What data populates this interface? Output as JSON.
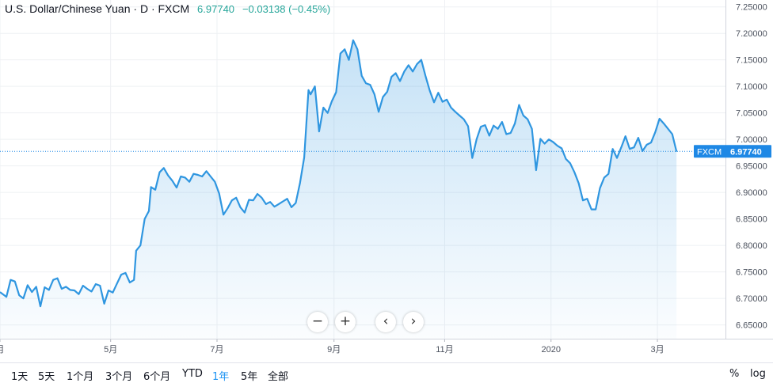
{
  "header": {
    "title": "U.S. Dollar/Chinese Yuan · D · FXCM",
    "price": "6.97740",
    "change": "−0.03138 (−0.45%)"
  },
  "price_label": {
    "symbol": "FXCM",
    "value": "6.97740"
  },
  "colors": {
    "line": "#2f96e0",
    "fill": "#2f96e0",
    "price_label_bg": "#1e88e5",
    "grid": "#eef0f3"
  },
  "controls": [
    {
      "name": "zoom-out-button",
      "label": "−"
    },
    {
      "name": "zoom-in-button",
      "label": "+"
    },
    {
      "name": "scroll-left-button",
      "label": "‹"
    },
    {
      "name": "scroll-right-button",
      "label": "›"
    }
  ],
  "ranges": [
    {
      "label": "1天",
      "active": false
    },
    {
      "label": "5天",
      "active": false
    },
    {
      "label": "1个月",
      "active": false
    },
    {
      "label": "3个月",
      "active": false
    },
    {
      "label": "6个月",
      "active": false
    },
    {
      "label": "YTD",
      "active": false
    },
    {
      "label": "1年",
      "active": true
    },
    {
      "label": "5年",
      "active": false
    },
    {
      "label": "全部",
      "active": false
    }
  ],
  "tools": {
    "percent": "%",
    "log": "log"
  },
  "chart_data": {
    "type": "area",
    "y_tick_labels": [
      "7.25000",
      "7.20000",
      "7.15000",
      "7.10000",
      "7.05000",
      "7.00000",
      "6.95000",
      "6.90000",
      "6.85000",
      "6.80000",
      "6.75000",
      "6.70000",
      "6.65000"
    ],
    "y_ticks": [
      7.25,
      7.2,
      7.15,
      7.1,
      7.05,
      7.0,
      6.95,
      6.9,
      6.85,
      6.8,
      6.75,
      6.7,
      6.65
    ],
    "ylim": [
      6.624,
      7.263
    ],
    "x_ticks": [
      {
        "label": "月",
        "day": 0
      },
      {
        "label": "5月",
        "day": 52
      },
      {
        "label": "7月",
        "day": 102
      },
      {
        "label": "9月",
        "day": 157
      },
      {
        "label": "11月",
        "day": 209
      },
      {
        "label": "2020",
        "day": 259
      },
      {
        "label": "3月",
        "day": 309
      }
    ],
    "xlim": [
      0,
      341
    ],
    "last_value": 6.9774,
    "series": [
      {
        "values": [
          [
            0,
            6.712
          ],
          [
            3,
            6.703
          ],
          [
            5,
            6.735
          ],
          [
            7,
            6.732
          ],
          [
            9,
            6.706
          ],
          [
            11,
            6.7
          ],
          [
            13,
            6.725
          ],
          [
            15,
            6.712
          ],
          [
            17,
            6.722
          ],
          [
            19,
            6.685
          ],
          [
            21,
            6.721
          ],
          [
            23,
            6.716
          ],
          [
            25,
            6.735
          ],
          [
            27,
            6.738
          ],
          [
            29,
            6.718
          ],
          [
            31,
            6.722
          ],
          [
            33,
            6.716
          ],
          [
            35,
            6.715
          ],
          [
            37,
            6.708
          ],
          [
            39,
            6.724
          ],
          [
            41,
            6.718
          ],
          [
            43,
            6.713
          ],
          [
            45,
            6.727
          ],
          [
            47,
            6.724
          ],
          [
            49,
            6.69
          ],
          [
            51,
            6.715
          ],
          [
            53,
            6.711
          ],
          [
            55,
            6.728
          ],
          [
            57,
            6.745
          ],
          [
            59,
            6.748
          ],
          [
            61,
            6.73
          ],
          [
            63,
            6.735
          ],
          [
            64,
            6.79
          ],
          [
            66,
            6.8
          ],
          [
            68,
            6.85
          ],
          [
            70,
            6.865
          ],
          [
            71,
            6.91
          ],
          [
            73,
            6.905
          ],
          [
            75,
            6.938
          ],
          [
            77,
            6.946
          ],
          [
            79,
            6.932
          ],
          [
            81,
            6.922
          ],
          [
            83,
            6.909
          ],
          [
            85,
            6.93
          ],
          [
            87,
            6.928
          ],
          [
            89,
            6.92
          ],
          [
            91,
            6.935
          ],
          [
            93,
            6.933
          ],
          [
            95,
            6.93
          ],
          [
            97,
            6.94
          ],
          [
            99,
            6.93
          ],
          [
            101,
            6.92
          ],
          [
            103,
            6.898
          ],
          [
            105,
            6.858
          ],
          [
            107,
            6.87
          ],
          [
            109,
            6.885
          ],
          [
            111,
            6.89
          ],
          [
            113,
            6.872
          ],
          [
            115,
            6.862
          ],
          [
            117,
            6.886
          ],
          [
            119,
            6.885
          ],
          [
            121,
            6.897
          ],
          [
            123,
            6.89
          ],
          [
            125,
            6.878
          ],
          [
            127,
            6.882
          ],
          [
            129,
            6.873
          ],
          [
            131,
            6.878
          ],
          [
            133,
            6.883
          ],
          [
            135,
            6.888
          ],
          [
            137,
            6.872
          ],
          [
            139,
            6.88
          ],
          [
            141,
            6.918
          ],
          [
            143,
            6.966
          ],
          [
            145,
            7.093
          ],
          [
            146,
            7.085
          ],
          [
            148,
            7.1
          ],
          [
            150,
            7.015
          ],
          [
            152,
            7.06
          ],
          [
            154,
            7.05
          ],
          [
            156,
            7.072
          ],
          [
            158,
            7.089
          ],
          [
            160,
            7.162
          ],
          [
            162,
            7.17
          ],
          [
            164,
            7.15
          ],
          [
            166,
            7.187
          ],
          [
            168,
            7.17
          ],
          [
            170,
            7.12
          ],
          [
            172,
            7.106
          ],
          [
            174,
            7.103
          ],
          [
            176,
            7.085
          ],
          [
            178,
            7.052
          ],
          [
            180,
            7.08
          ],
          [
            182,
            7.09
          ],
          [
            184,
            7.118
          ],
          [
            186,
            7.125
          ],
          [
            188,
            7.11
          ],
          [
            190,
            7.128
          ],
          [
            192,
            7.14
          ],
          [
            194,
            7.128
          ],
          [
            196,
            7.142
          ],
          [
            198,
            7.15
          ],
          [
            200,
            7.12
          ],
          [
            202,
            7.092
          ],
          [
            204,
            7.07
          ],
          [
            206,
            7.088
          ],
          [
            208,
            7.071
          ],
          [
            210,
            7.075
          ],
          [
            212,
            7.06
          ],
          [
            214,
            7.052
          ],
          [
            216,
            7.045
          ],
          [
            218,
            7.038
          ],
          [
            220,
            7.025
          ],
          [
            222,
            6.965
          ],
          [
            224,
            7.0
          ],
          [
            226,
            7.024
          ],
          [
            228,
            7.027
          ],
          [
            230,
            7.007
          ],
          [
            232,
            7.026
          ],
          [
            234,
            7.02
          ],
          [
            236,
            7.033
          ],
          [
            238,
            7.01
          ],
          [
            240,
            7.012
          ],
          [
            242,
            7.03
          ],
          [
            244,
            7.065
          ],
          [
            246,
            7.045
          ],
          [
            248,
            7.038
          ],
          [
            250,
            7.02
          ],
          [
            252,
            6.942
          ],
          [
            254,
            7.001
          ],
          [
            256,
            6.992
          ],
          [
            258,
            7.0
          ],
          [
            260,
            6.995
          ],
          [
            262,
            6.988
          ],
          [
            264,
            6.983
          ],
          [
            266,
            6.963
          ],
          [
            268,
            6.955
          ],
          [
            270,
            6.938
          ],
          [
            272,
            6.917
          ],
          [
            274,
            6.885
          ],
          [
            276,
            6.888
          ],
          [
            278,
            6.868
          ],
          [
            280,
            6.868
          ],
          [
            282,
            6.908
          ],
          [
            284,
            6.928
          ],
          [
            286,
            6.935
          ],
          [
            288,
            6.982
          ],
          [
            290,
            6.965
          ],
          [
            292,
            6.985
          ],
          [
            294,
            7.006
          ],
          [
            296,
            6.982
          ],
          [
            298,
            6.985
          ],
          [
            300,
            7.003
          ],
          [
            302,
            6.978
          ],
          [
            304,
            6.99
          ],
          [
            306,
            6.994
          ],
          [
            308,
            7.014
          ],
          [
            310,
            7.039
          ],
          [
            312,
            7.03
          ],
          [
            314,
            7.02
          ],
          [
            316,
            7.01
          ],
          [
            318,
            6.977
          ]
        ]
      }
    ],
    "grid": true,
    "legend": "none"
  }
}
